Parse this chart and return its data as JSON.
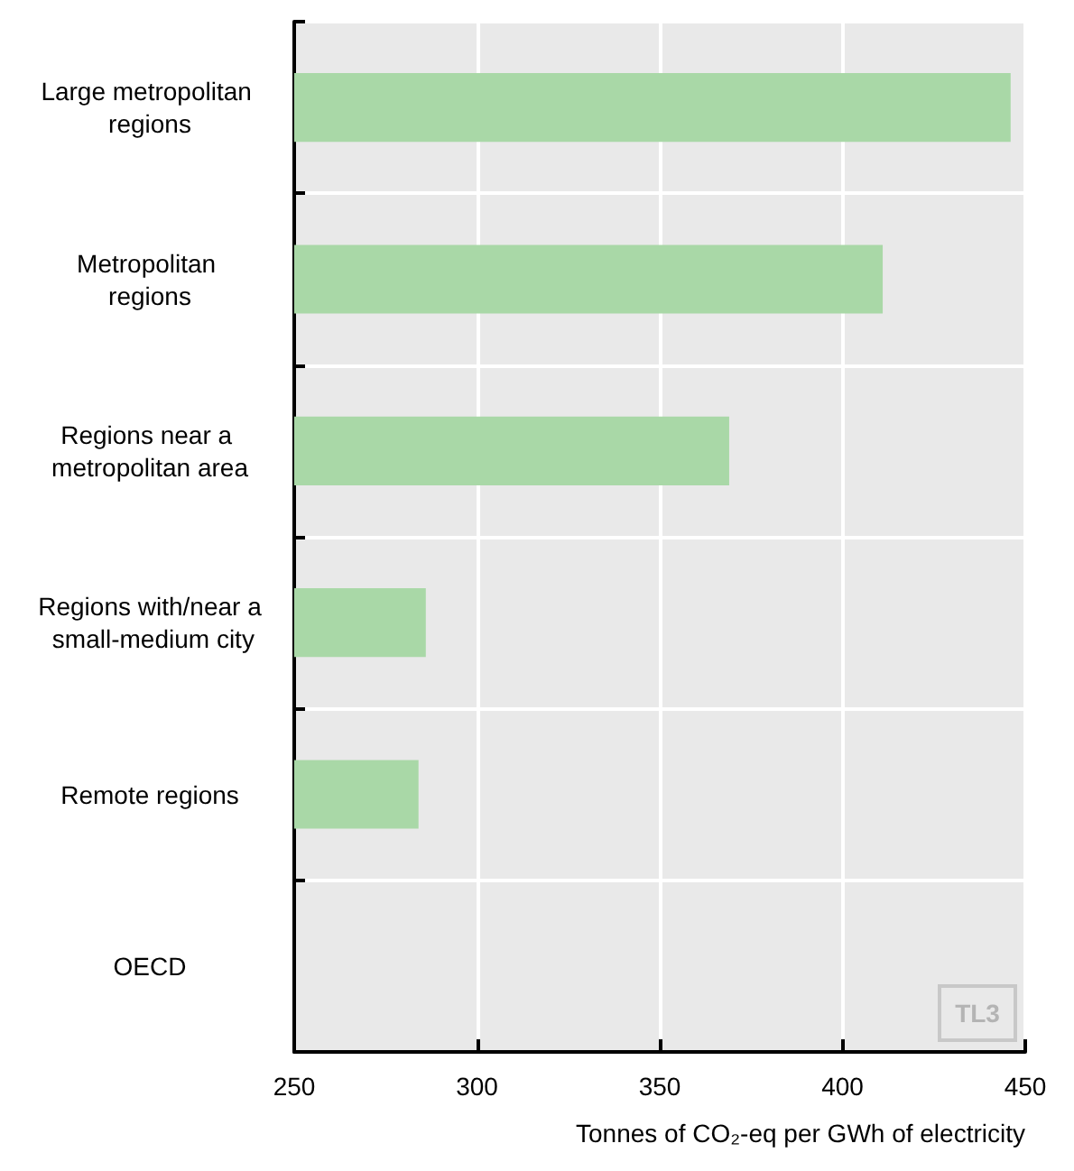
{
  "chart_data": {
    "type": "bar",
    "orientation": "horizontal",
    "categories": [
      "Large metropolitan regions",
      "Metropolitan regions",
      "Regions near a metropolitan area",
      "Regions with/near a small-medium city",
      "Remote regions",
      "OECD"
    ],
    "values": [
      446,
      411,
      369,
      286,
      284,
      null
    ],
    "color": "#a9d8a7",
    "xlabel": "Tonnes of CO₂-eq per GWh of electricity",
    "xlim": [
      250,
      450
    ],
    "xticks": [
      250,
      300,
      350,
      400,
      450
    ],
    "grid": true,
    "annotations": [
      "TL3"
    ]
  }
}
